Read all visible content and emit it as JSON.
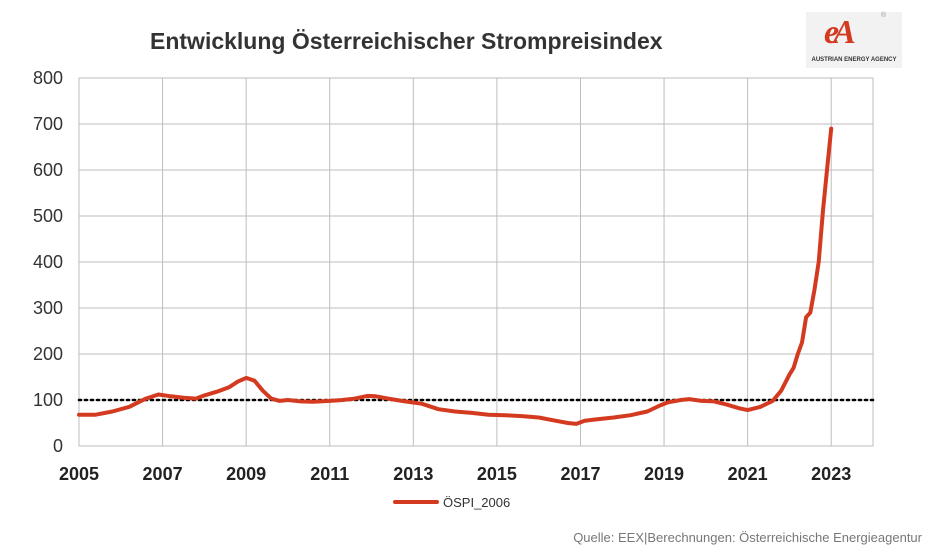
{
  "logo": {
    "mark": "eA",
    "reg": "®",
    "text": "AUSTRIAN ENERGY AGENCY"
  },
  "source": "Quelle: EEX|Berechnungen: Österreichische Energieagentur",
  "chart_data": {
    "type": "line",
    "title": "Entwicklung Österreichischer Strompreisindex",
    "xlabel": "",
    "ylabel": "",
    "xlim": [
      2005,
      2024
    ],
    "ylim": [
      0,
      800
    ],
    "xticks": [
      2005,
      2007,
      2009,
      2011,
      2013,
      2015,
      2017,
      2019,
      2021,
      2023
    ],
    "yticks": [
      0,
      100,
      200,
      300,
      400,
      500,
      600,
      700,
      800
    ],
    "grid": true,
    "legend": "bottom-center",
    "reference_line": {
      "y": 100,
      "style": "dotted",
      "color": "#000000"
    },
    "series": [
      {
        "name": "ÖSPI_2006",
        "color": "#d33a1f",
        "x": [
          2005.0,
          2005.4,
          2005.8,
          2006.2,
          2006.6,
          2006.9,
          2007.2,
          2007.5,
          2007.8,
          2008.0,
          2008.3,
          2008.6,
          2008.8,
          2009.0,
          2009.2,
          2009.4,
          2009.6,
          2009.8,
          2010.0,
          2010.3,
          2010.6,
          2011.0,
          2011.3,
          2011.6,
          2011.9,
          2012.1,
          2012.4,
          2012.8,
          2013.2,
          2013.6,
          2014.0,
          2014.4,
          2014.8,
          2015.2,
          2015.6,
          2016.0,
          2016.4,
          2016.7,
          2016.9,
          2017.1,
          2017.4,
          2017.8,
          2018.2,
          2018.6,
          2018.9,
          2019.1,
          2019.4,
          2019.6,
          2019.9,
          2020.2,
          2020.5,
          2020.8,
          2021.0,
          2021.3,
          2021.6,
          2021.8,
          2022.0,
          2022.1,
          2022.2,
          2022.3,
          2022.4,
          2022.5,
          2022.6,
          2022.7,
          2022.8,
          2022.9,
          2023.0
        ],
        "values": [
          68,
          68,
          75,
          85,
          103,
          112,
          108,
          105,
          103,
          110,
          118,
          128,
          140,
          148,
          142,
          120,
          103,
          98,
          100,
          97,
          96,
          98,
          100,
          103,
          109,
          108,
          103,
          97,
          92,
          80,
          75,
          72,
          68,
          67,
          65,
          62,
          55,
          50,
          48,
          55,
          58,
          62,
          67,
          75,
          88,
          95,
          100,
          102,
          98,
          97,
          90,
          82,
          78,
          85,
          98,
          120,
          155,
          170,
          200,
          225,
          280,
          290,
          340,
          400,
          510,
          600,
          690
        ]
      }
    ]
  }
}
